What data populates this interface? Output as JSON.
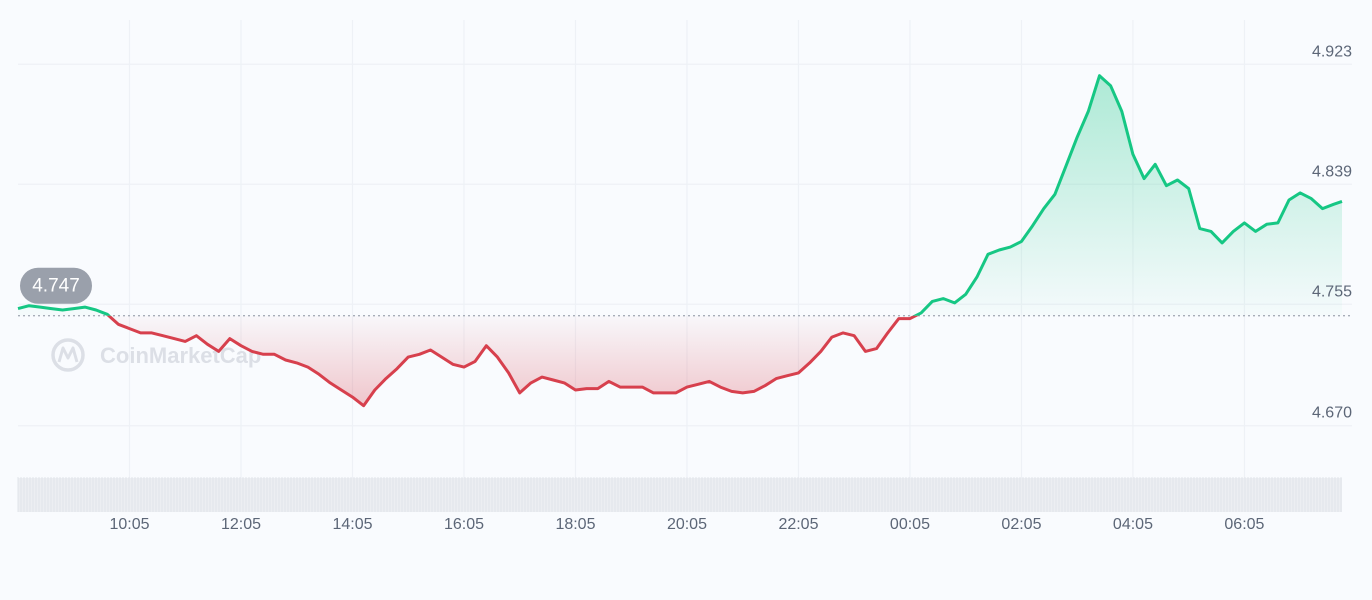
{
  "chart_data": {
    "type": "line",
    "ylim": [
      4.66,
      4.94
    ],
    "y_ticks": [
      "4.923",
      "4.839",
      "4.755",
      "4.670"
    ],
    "x_ticks": [
      "10:05",
      "12:05",
      "14:05",
      "16:05",
      "18:05",
      "20:05",
      "22:05",
      "00:05",
      "02:05",
      "04:05",
      "06:05"
    ],
    "x_range_hours": [
      0,
      23.75
    ],
    "x_tick_hours": [
      2,
      4,
      6,
      8,
      10,
      12,
      14,
      16,
      18,
      20,
      22
    ],
    "baseline": 4.747,
    "baseline_label": "4.747",
    "grid": true,
    "colors": {
      "up": "#16c784",
      "down": "#d7404d",
      "grid": "#eef1f6",
      "badge": "#9aa0ab"
    },
    "watermark": "CoinMarketCap",
    "series": [
      {
        "hours": [
          0.0,
          0.2,
          0.4,
          0.6,
          0.8,
          1.0,
          1.2,
          1.4,
          1.6,
          1.8,
          2.0,
          2.2,
          2.4,
          2.6,
          2.8,
          3.0,
          3.2,
          3.4,
          3.6,
          3.8,
          4.0,
          4.2,
          4.4,
          4.6,
          4.8,
          5.0,
          5.2,
          5.4,
          5.6,
          5.8,
          6.0,
          6.2,
          6.4,
          6.6,
          6.8,
          7.0,
          7.2,
          7.4,
          7.6,
          7.8,
          8.0,
          8.2,
          8.4,
          8.6,
          8.8,
          9.0,
          9.2,
          9.4,
          9.6,
          9.8,
          10.0,
          10.2,
          10.4,
          10.6,
          10.8,
          11.0,
          11.2,
          11.4,
          11.6,
          11.8,
          12.0,
          12.2,
          12.4,
          12.6,
          12.8,
          13.0,
          13.2,
          13.4,
          13.6,
          13.8,
          14.0,
          14.2,
          14.4,
          14.6,
          14.8,
          15.0,
          15.2,
          15.4,
          15.6,
          15.8,
          16.0,
          16.2,
          16.4,
          16.6,
          16.8,
          17.0,
          17.2,
          17.4,
          17.6,
          17.8,
          18.0,
          18.2,
          18.4,
          18.6,
          18.8,
          19.0,
          19.2,
          19.4,
          19.6,
          19.8,
          20.0,
          20.2,
          20.4,
          20.6,
          20.8,
          21.0,
          21.2,
          21.4,
          21.6,
          21.8,
          22.0,
          22.2,
          22.4,
          22.6,
          22.8,
          23.0,
          23.2,
          23.4,
          23.6,
          23.75
        ],
        "values": [
          4.752,
          4.754,
          4.753,
          4.752,
          4.751,
          4.752,
          4.753,
          4.751,
          4.748,
          4.741,
          4.738,
          4.735,
          4.735,
          4.733,
          4.731,
          4.729,
          4.733,
          4.727,
          4.722,
          4.731,
          4.726,
          4.722,
          4.72,
          4.72,
          4.716,
          4.714,
          4.711,
          4.706,
          4.7,
          4.695,
          4.69,
          4.684,
          4.695,
          4.703,
          4.71,
          4.718,
          4.72,
          4.723,
          4.718,
          4.713,
          4.711,
          4.715,
          4.726,
          4.718,
          4.707,
          4.693,
          4.7,
          4.704,
          4.702,
          4.7,
          4.695,
          4.696,
          4.696,
          4.701,
          4.697,
          4.697,
          4.697,
          4.693,
          4.693,
          4.693,
          4.697,
          4.699,
          4.701,
          4.697,
          4.694,
          4.693,
          4.694,
          4.698,
          4.703,
          4.705,
          4.707,
          4.714,
          4.722,
          4.732,
          4.735,
          4.733,
          4.722,
          4.724,
          4.735,
          4.745,
          4.745,
          4.749,
          4.757,
          4.759,
          4.756,
          4.762,
          4.774,
          4.79,
          4.793,
          4.795,
          4.799,
          4.81,
          4.822,
          4.832,
          4.852,
          4.872,
          4.89,
          4.915,
          4.908,
          4.89,
          4.86,
          4.843,
          4.853,
          4.838,
          4.842,
          4.836,
          4.808,
          4.806,
          4.798,
          4.806,
          4.812,
          4.806,
          4.811,
          4.812,
          4.828,
          4.833,
          4.829,
          4.822,
          4.825,
          4.827
        ]
      }
    ]
  }
}
